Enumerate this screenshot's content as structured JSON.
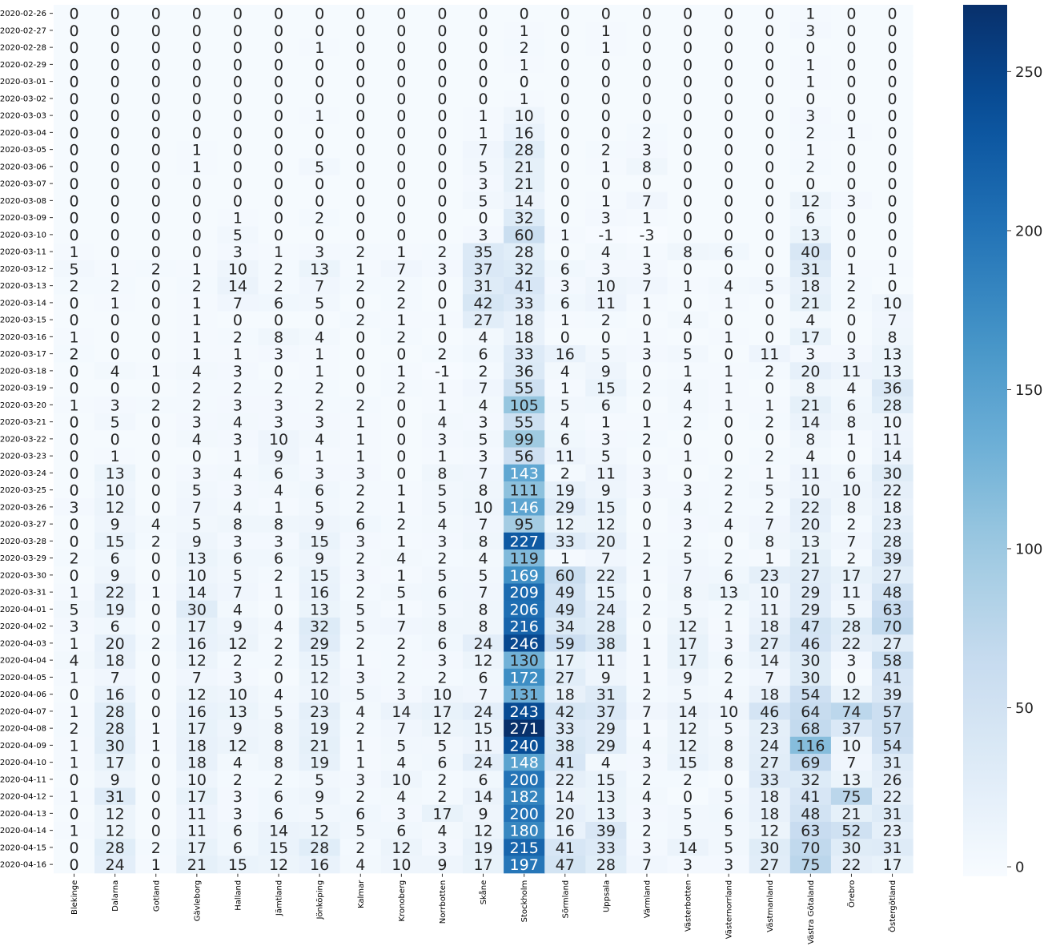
{
  "chart_data": {
    "type": "heatmap",
    "colormap": "Blues",
    "vmin": -3,
    "vmax": 271,
    "colorbar_ticks": [
      0,
      50,
      100,
      150,
      200,
      250
    ],
    "x_categories": [
      "Blekinge",
      "Dalarna",
      "Gotland",
      "Gävleborg",
      "Halland",
      "Jämtland",
      "Jönköping",
      "Kalmar",
      "Kronoberg",
      "Norrbotten",
      "Skåne",
      "Stockholm",
      "Sörmland",
      "Uppsala",
      "Värmland",
      "Västerbotten",
      "Västernorrland",
      "Västmanland",
      "Västra Götaland",
      "Örebro",
      "Östergötland"
    ],
    "y_categories": [
      "2020-02-26",
      "2020-02-27",
      "2020-02-28",
      "2020-02-29",
      "2020-03-01",
      "2020-03-02",
      "2020-03-03",
      "2020-03-04",
      "2020-03-05",
      "2020-03-06",
      "2020-03-07",
      "2020-03-08",
      "2020-03-09",
      "2020-03-10",
      "2020-03-11",
      "2020-03-12",
      "2020-03-13",
      "2020-03-14",
      "2020-03-15",
      "2020-03-16",
      "2020-03-17",
      "2020-03-18",
      "2020-03-19",
      "2020-03-20",
      "2020-03-21",
      "2020-03-22",
      "2020-03-23",
      "2020-03-24",
      "2020-03-25",
      "2020-03-26",
      "2020-03-27",
      "2020-03-28",
      "2020-03-29",
      "2020-03-30",
      "2020-03-31",
      "2020-04-01",
      "2020-04-02",
      "2020-04-03",
      "2020-04-04",
      "2020-04-05",
      "2020-04-06",
      "2020-04-07",
      "2020-04-08",
      "2020-04-09",
      "2020-04-10",
      "2020-04-11",
      "2020-04-12",
      "2020-04-13",
      "2020-04-14",
      "2020-04-15",
      "2020-04-16"
    ],
    "values": [
      [
        0,
        0,
        0,
        0,
        0,
        0,
        0,
        0,
        0,
        0,
        0,
        0,
        0,
        0,
        0,
        0,
        0,
        0,
        1,
        0,
        0
      ],
      [
        0,
        0,
        0,
        0,
        0,
        0,
        0,
        0,
        0,
        0,
        0,
        1,
        0,
        1,
        0,
        0,
        0,
        0,
        3,
        0,
        0
      ],
      [
        0,
        0,
        0,
        0,
        0,
        0,
        1,
        0,
        0,
        0,
        0,
        2,
        0,
        1,
        0,
        0,
        0,
        0,
        0,
        0,
        0
      ],
      [
        0,
        0,
        0,
        0,
        0,
        0,
        0,
        0,
        0,
        0,
        0,
        1,
        0,
        0,
        0,
        0,
        0,
        0,
        1,
        0,
        0
      ],
      [
        0,
        0,
        0,
        0,
        0,
        0,
        0,
        0,
        0,
        0,
        0,
        0,
        0,
        0,
        0,
        0,
        0,
        0,
        1,
        0,
        0
      ],
      [
        0,
        0,
        0,
        0,
        0,
        0,
        0,
        0,
        0,
        0,
        0,
        1,
        0,
        0,
        0,
        0,
        0,
        0,
        0,
        0,
        0
      ],
      [
        0,
        0,
        0,
        0,
        0,
        0,
        1,
        0,
        0,
        0,
        1,
        10,
        0,
        0,
        0,
        0,
        0,
        0,
        3,
        0,
        0
      ],
      [
        0,
        0,
        0,
        0,
        0,
        0,
        0,
        0,
        0,
        0,
        1,
        16,
        0,
        0,
        2,
        0,
        0,
        0,
        2,
        1,
        0
      ],
      [
        0,
        0,
        0,
        1,
        0,
        0,
        0,
        0,
        0,
        0,
        7,
        28,
        0,
        2,
        3,
        0,
        0,
        0,
        1,
        0,
        0
      ],
      [
        0,
        0,
        0,
        1,
        0,
        0,
        5,
        0,
        0,
        0,
        5,
        21,
        0,
        1,
        8,
        0,
        0,
        0,
        2,
        0,
        0
      ],
      [
        0,
        0,
        0,
        0,
        0,
        0,
        0,
        0,
        0,
        0,
        3,
        21,
        0,
        0,
        0,
        0,
        0,
        0,
        0,
        0,
        0
      ],
      [
        0,
        0,
        0,
        0,
        0,
        0,
        0,
        0,
        0,
        0,
        5,
        14,
        0,
        1,
        7,
        0,
        0,
        0,
        12,
        3,
        0
      ],
      [
        0,
        0,
        0,
        0,
        1,
        0,
        2,
        0,
        0,
        0,
        0,
        32,
        0,
        3,
        1,
        0,
        0,
        0,
        6,
        0,
        0
      ],
      [
        0,
        0,
        0,
        0,
        5,
        0,
        0,
        0,
        0,
        0,
        3,
        60,
        1,
        -1,
        -3,
        0,
        0,
        0,
        13,
        0,
        0
      ],
      [
        1,
        0,
        0,
        0,
        3,
        1,
        3,
        2,
        1,
        2,
        35,
        28,
        0,
        4,
        1,
        8,
        6,
        0,
        40,
        0,
        0
      ],
      [
        5,
        1,
        2,
        1,
        10,
        2,
        13,
        1,
        7,
        3,
        37,
        32,
        6,
        3,
        3,
        0,
        0,
        0,
        31,
        1,
        1
      ],
      [
        2,
        2,
        0,
        2,
        14,
        2,
        7,
        2,
        2,
        0,
        31,
        41,
        3,
        10,
        7,
        1,
        4,
        5,
        18,
        2,
        0
      ],
      [
        0,
        1,
        0,
        1,
        7,
        6,
        5,
        0,
        2,
        0,
        42,
        33,
        6,
        11,
        1,
        0,
        1,
        0,
        21,
        2,
        10
      ],
      [
        0,
        0,
        0,
        1,
        0,
        0,
        0,
        2,
        1,
        1,
        27,
        18,
        1,
        2,
        0,
        4,
        0,
        0,
        4,
        0,
        7
      ],
      [
        1,
        0,
        0,
        1,
        2,
        8,
        4,
        0,
        2,
        0,
        4,
        18,
        0,
        0,
        1,
        0,
        1,
        0,
        17,
        0,
        8
      ],
      [
        2,
        0,
        0,
        1,
        1,
        3,
        1,
        0,
        0,
        2,
        6,
        33,
        16,
        5,
        3,
        5,
        0,
        11,
        3,
        3,
        13
      ],
      [
        0,
        4,
        1,
        4,
        3,
        0,
        1,
        0,
        1,
        -1,
        2,
        36,
        4,
        9,
        0,
        1,
        1,
        2,
        20,
        11,
        13
      ],
      [
        0,
        0,
        0,
        2,
        2,
        2,
        2,
        0,
        2,
        1,
        7,
        55,
        1,
        15,
        2,
        4,
        1,
        0,
        8,
        4,
        36
      ],
      [
        1,
        3,
        2,
        2,
        3,
        3,
        2,
        2,
        0,
        1,
        4,
        105,
        5,
        6,
        0,
        4,
        1,
        1,
        21,
        6,
        28
      ],
      [
        0,
        5,
        0,
        3,
        4,
        3,
        3,
        1,
        0,
        4,
        3,
        55,
        4,
        1,
        1,
        2,
        0,
        2,
        14,
        8,
        10
      ],
      [
        0,
        0,
        0,
        4,
        3,
        10,
        4,
        1,
        0,
        3,
        5,
        99,
        6,
        3,
        2,
        0,
        0,
        0,
        8,
        1,
        11
      ],
      [
        0,
        1,
        0,
        0,
        1,
        9,
        1,
        1,
        0,
        1,
        3,
        56,
        11,
        5,
        0,
        1,
        0,
        2,
        4,
        0,
        14
      ],
      [
        0,
        13,
        0,
        3,
        4,
        6,
        3,
        3,
        0,
        8,
        7,
        143,
        2,
        11,
        3,
        0,
        2,
        1,
        11,
        6,
        30
      ],
      [
        0,
        10,
        0,
        5,
        3,
        4,
        6,
        2,
        1,
        5,
        8,
        111,
        19,
        9,
        3,
        3,
        2,
        5,
        10,
        10,
        22
      ],
      [
        3,
        12,
        0,
        7,
        4,
        1,
        5,
        2,
        1,
        5,
        10,
        146,
        29,
        15,
        0,
        4,
        2,
        2,
        22,
        8,
        18
      ],
      [
        0,
        9,
        4,
        5,
        8,
        8,
        9,
        6,
        2,
        4,
        7,
        95,
        12,
        12,
        0,
        3,
        4,
        7,
        20,
        2,
        23
      ],
      [
        0,
        15,
        2,
        9,
        3,
        3,
        15,
        3,
        1,
        3,
        8,
        227,
        33,
        20,
        1,
        2,
        0,
        8,
        13,
        7,
        28
      ],
      [
        2,
        6,
        0,
        13,
        6,
        6,
        9,
        2,
        4,
        2,
        4,
        119,
        1,
        7,
        2,
        5,
        2,
        1,
        21,
        2,
        39
      ],
      [
        0,
        9,
        0,
        10,
        5,
        2,
        15,
        3,
        1,
        5,
        5,
        169,
        60,
        22,
        1,
        7,
        6,
        23,
        27,
        17,
        27
      ],
      [
        1,
        22,
        1,
        14,
        7,
        1,
        16,
        2,
        5,
        6,
        7,
        209,
        49,
        15,
        0,
        8,
        13,
        10,
        29,
        11,
        48
      ],
      [
        5,
        19,
        0,
        30,
        4,
        0,
        13,
        5,
        1,
        5,
        8,
        206,
        49,
        24,
        2,
        5,
        2,
        11,
        29,
        5,
        63
      ],
      [
        3,
        6,
        0,
        17,
        9,
        4,
        32,
        5,
        7,
        8,
        8,
        216,
        34,
        28,
        0,
        12,
        1,
        18,
        47,
        28,
        70
      ],
      [
        1,
        20,
        2,
        16,
        12,
        2,
        29,
        2,
        2,
        6,
        24,
        246,
        59,
        38,
        1,
        17,
        3,
        27,
        46,
        22,
        27
      ],
      [
        4,
        18,
        0,
        12,
        2,
        2,
        15,
        1,
        2,
        3,
        12,
        130,
        17,
        11,
        1,
        17,
        6,
        14,
        30,
        3,
        58
      ],
      [
        1,
        7,
        0,
        7,
        3,
        0,
        12,
        3,
        2,
        2,
        6,
        172,
        27,
        9,
        1,
        9,
        2,
        7,
        30,
        0,
        41
      ],
      [
        0,
        16,
        0,
        12,
        10,
        4,
        10,
        5,
        3,
        10,
        7,
        131,
        18,
        31,
        2,
        5,
        4,
        18,
        54,
        12,
        39
      ],
      [
        1,
        28,
        0,
        16,
        13,
        5,
        23,
        4,
        14,
        17,
        24,
        243,
        42,
        37,
        7,
        14,
        10,
        46,
        64,
        74,
        57
      ],
      [
        2,
        28,
        1,
        17,
        9,
        8,
        19,
        2,
        7,
        12,
        15,
        271,
        33,
        29,
        1,
        12,
        5,
        23,
        68,
        37,
        57
      ],
      [
        1,
        30,
        1,
        18,
        12,
        8,
        21,
        1,
        5,
        5,
        11,
        240,
        38,
        29,
        4,
        12,
        8,
        24,
        116,
        10,
        54
      ],
      [
        1,
        17,
        0,
        18,
        4,
        8,
        19,
        1,
        4,
        6,
        24,
        148,
        41,
        4,
        3,
        15,
        8,
        27,
        69,
        7,
        31
      ],
      [
        0,
        9,
        0,
        10,
        2,
        2,
        5,
        3,
        10,
        2,
        6,
        200,
        22,
        15,
        2,
        2,
        0,
        33,
        32,
        13,
        26
      ],
      [
        1,
        31,
        0,
        17,
        3,
        6,
        9,
        2,
        4,
        2,
        14,
        182,
        14,
        13,
        4,
        0,
        5,
        18,
        41,
        75,
        22
      ],
      [
        0,
        12,
        0,
        11,
        3,
        6,
        5,
        6,
        3,
        17,
        9,
        200,
        20,
        13,
        3,
        5,
        6,
        18,
        48,
        21,
        31
      ],
      [
        1,
        12,
        0,
        11,
        6,
        14,
        12,
        5,
        6,
        4,
        12,
        180,
        16,
        39,
        2,
        5,
        5,
        12,
        63,
        52,
        23
      ],
      [
        0,
        28,
        2,
        17,
        6,
        15,
        28,
        2,
        12,
        3,
        19,
        215,
        41,
        33,
        3,
        14,
        5,
        30,
        70,
        30,
        31
      ],
      [
        0,
        24,
        1,
        21,
        15,
        12,
        16,
        4,
        10,
        9,
        17,
        197,
        47,
        28,
        7,
        3,
        3,
        27,
        75,
        22,
        17
      ]
    ]
  }
}
